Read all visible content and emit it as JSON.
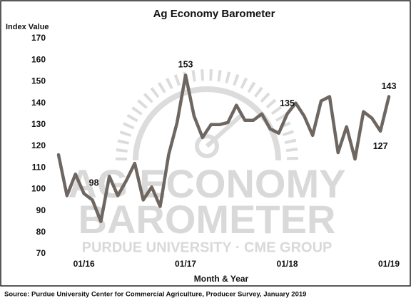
{
  "chart_data": {
    "type": "line",
    "title": "Ag Economy Barometer",
    "y_label": "Index Value",
    "x_label": "Month & Year",
    "source": "Source: Purdue University Center for Commercial Agriculture, Producer Survey, January 2019",
    "watermark": [
      "AG ECONOMY",
      "BAROMETER",
      "PURDUE UNIVERSITY  ·  CME GROUP"
    ],
    "categories": [
      null,
      null,
      null,
      "01/16",
      null,
      null,
      null,
      null,
      null,
      null,
      null,
      null,
      null,
      null,
      null,
      "01/17",
      null,
      null,
      null,
      null,
      null,
      null,
      null,
      null,
      null,
      null,
      null,
      "01/18",
      null,
      null,
      null,
      null,
      null,
      null,
      null,
      null,
      null,
      null,
      null,
      "01/19"
    ],
    "series": [
      {
        "name": "Index Value",
        "color": "#6e6661",
        "values": [
          116,
          97,
          107,
          98,
          95,
          85,
          106,
          97,
          104,
          112,
          95,
          101,
          92,
          116,
          131,
          153,
          134,
          124,
          130,
          130,
          131,
          139,
          132,
          132,
          135,
          128,
          126,
          135,
          140,
          134,
          125,
          141,
          143,
          117,
          129,
          114,
          136,
          133,
          127,
          143
        ]
      }
    ],
    "data_labels": [
      3,
      15,
      27,
      38,
      39
    ],
    "ylim": [
      70,
      170
    ],
    "yticks": [
      70,
      80,
      90,
      100,
      110,
      120,
      130,
      140,
      150,
      160,
      170
    ],
    "grid": false
  }
}
